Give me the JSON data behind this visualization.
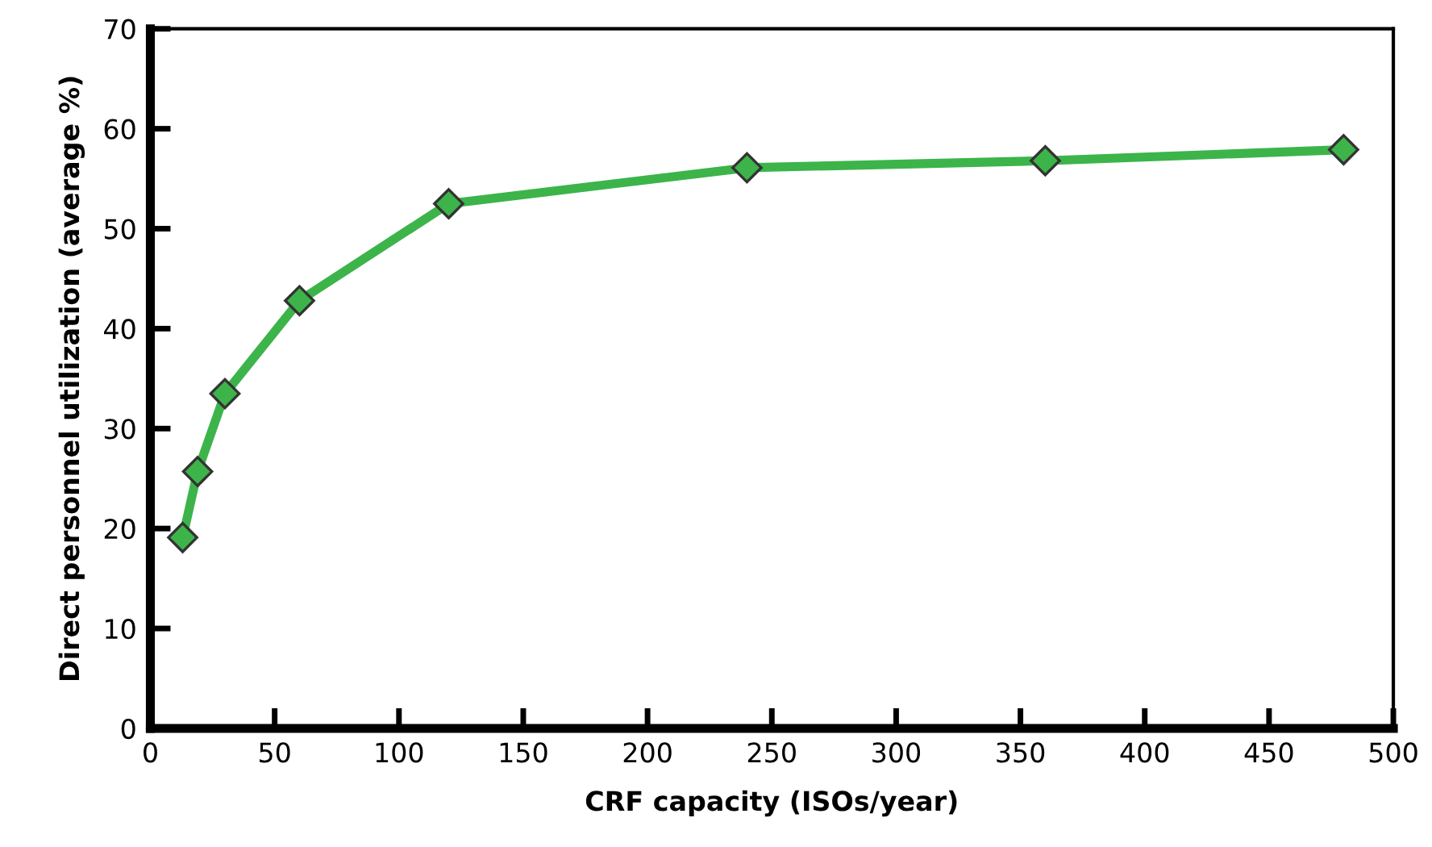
{
  "chart_data": {
    "type": "line",
    "xlabel": "CRF capacity (ISOs/year)",
    "ylabel": "Direct personnel utilization (average %)",
    "x": [
      13,
      19,
      30,
      60,
      120,
      240,
      360,
      480
    ],
    "series": [
      {
        "color": "#3cb44a",
        "values": [
          19.1,
          25.7,
          33.5,
          42.8,
          52.5,
          56.1,
          56.8,
          57.9
        ]
      }
    ],
    "xlim": [
      0,
      500
    ],
    "xticks": [
      0,
      50,
      100,
      150,
      200,
      250,
      300,
      350,
      400,
      450,
      500
    ],
    "ylim": [
      0,
      70
    ],
    "yticks": [
      0,
      10,
      20,
      30,
      40,
      50,
      60,
      70
    ],
    "marker": "diamond",
    "line_style": "solid",
    "grid": false,
    "legend": false
  }
}
